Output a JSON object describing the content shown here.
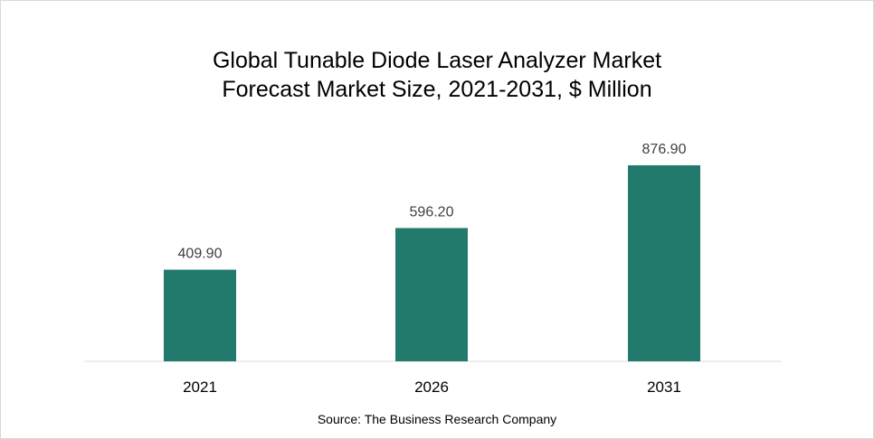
{
  "chart_data": {
    "type": "bar",
    "title": "Global Tunable Diode Laser Analyzer Market Forecast Market Size, 2021-2031, $ Million",
    "title_lines": [
      "Global Tunable Diode Laser Analyzer Market",
      "Forecast Market Size, 2021-2031, $ Million"
    ],
    "categories": [
      "2021",
      "2026",
      "2031"
    ],
    "values": [
      409.9,
      596.2,
      876.9
    ],
    "value_labels": [
      "409.90",
      "596.20",
      "876.90"
    ],
    "xlabel": "",
    "ylabel": "",
    "ylim": [
      0,
      1000
    ],
    "grid": false,
    "legend": "none",
    "bar_color": "#217a6b"
  },
  "source": "Source: The Business Research Company"
}
